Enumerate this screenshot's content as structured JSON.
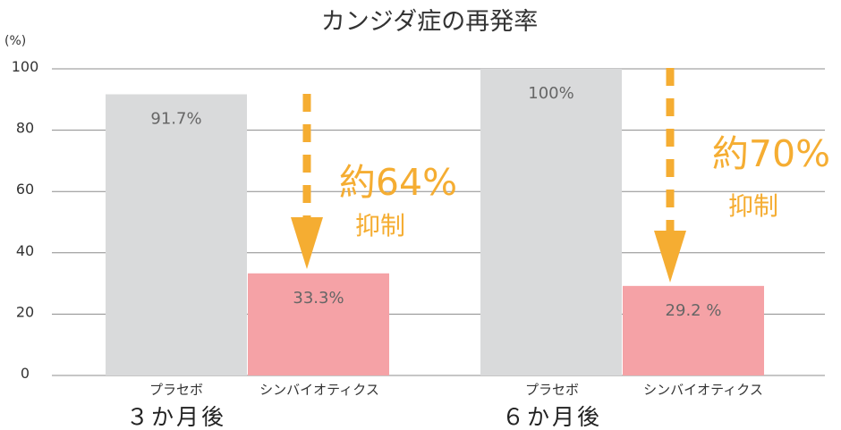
{
  "chart_data": {
    "type": "bar",
    "title": "カンジダ症の再発率",
    "unit_label": "(%)",
    "ylim": [
      0,
      100
    ],
    "yticks": [
      "0",
      "20",
      "40",
      "60",
      "80",
      "100"
    ],
    "grid": true,
    "groups": [
      {
        "label": "３か月後",
        "bars": [
          {
            "category": "プラセボ",
            "value": 91.7,
            "label": "91.7%"
          },
          {
            "category": "シンバイオティクス",
            "value": 33.3,
            "label": "33.3%"
          }
        ],
        "annotation": {
          "main": "約64%",
          "sub": "抑制"
        }
      },
      {
        "label": "６か月後",
        "bars": [
          {
            "category": "プラセボ",
            "value": 100,
            "label": "100%"
          },
          {
            "category": "シンバイオティクス",
            "value": 29.2,
            "label": "29.2 %"
          }
        ],
        "annotation": {
          "main": "約70%",
          "sub": "抑制"
        }
      }
    ],
    "colors": {
      "placebo": "#d9dadb",
      "synbiotics": "#f5a2a6",
      "annotation": "#f5ad32",
      "grid": "#8c8c8c"
    }
  }
}
